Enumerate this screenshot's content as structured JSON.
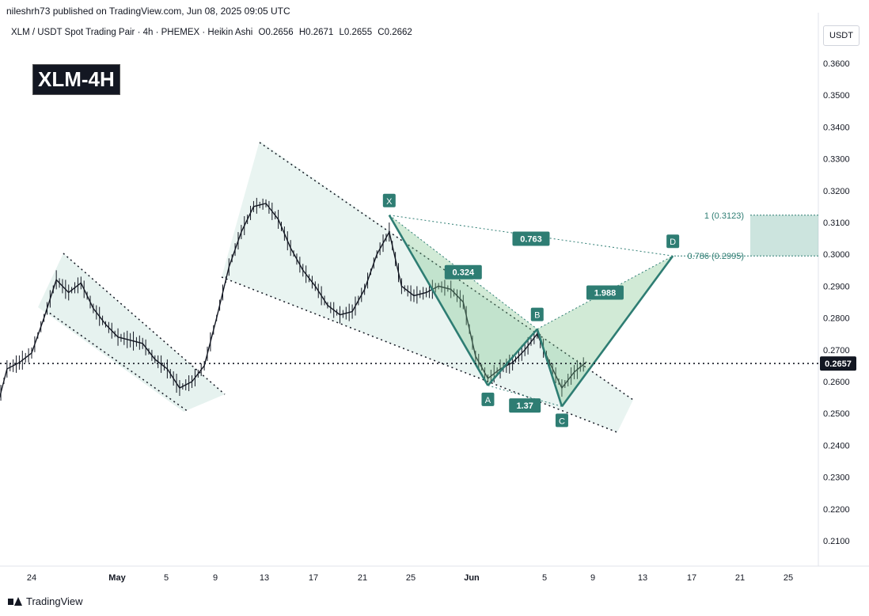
{
  "publisher": "nileshrh73 published on TradingView.com, Jun 08, 2025 09:05 UTC",
  "symbol_info": {
    "pair": "XLM / USDT Spot Trading Pair · 4h · PHEMEX · Heikin Ashi",
    "open": "O0.2656",
    "high": "H0.2671",
    "low": "L0.2655",
    "close": "C0.2662"
  },
  "badge": "XLM-4H",
  "currency": "USDT",
  "footer_brand": "TradingView",
  "colors": {
    "pattern": "#2e7d73",
    "pattern_fill": "#7cc48a",
    "channel_fill": "#c8e3dc",
    "target_fill": "#8ec3b6",
    "price_tag": "#131722"
  },
  "chart_data": {
    "type": "line",
    "title": "XLM-4H",
    "ylabel": "USDT",
    "ylim": [
      0.2045,
      0.3675
    ],
    "y_ticks": [
      "0.3600",
      "0.3500",
      "0.3400",
      "0.3300",
      "0.3200",
      "0.3100",
      "0.3000",
      "0.2900",
      "0.2800",
      "0.2700",
      "0.2600",
      "0.2500",
      "0.2400",
      "0.2300",
      "0.2200",
      "0.2100"
    ],
    "x_ticks": [
      "24",
      "May",
      "5",
      "9",
      "13",
      "17",
      "21",
      "25",
      "Jun",
      "5",
      "9",
      "13",
      "17",
      "21",
      "25"
    ],
    "current_price": "0.2657",
    "price_path": [
      [
        "Apr 21",
        0.249
      ],
      [
        "Apr 22",
        0.264
      ],
      [
        "Apr 23",
        0.266
      ],
      [
        "Apr 24",
        0.269
      ],
      [
        "Apr 25",
        0.28
      ],
      [
        "Apr 26",
        0.292
      ],
      [
        "Apr 27",
        0.288
      ],
      [
        "Apr 28",
        0.291
      ],
      [
        "Apr 29",
        0.283
      ],
      [
        "Apr 30",
        0.278
      ],
      [
        "May 1",
        0.274
      ],
      [
        "May 2",
        0.273
      ],
      [
        "May 3",
        0.272
      ],
      [
        "May 4",
        0.267
      ],
      [
        "May 5",
        0.264
      ],
      [
        "May 6",
        0.258
      ],
      [
        "May 7",
        0.26
      ],
      [
        "May 8",
        0.265
      ],
      [
        "May 9",
        0.28
      ],
      [
        "May 10",
        0.296
      ],
      [
        "May 11",
        0.307
      ],
      [
        "May 12",
        0.315
      ],
      [
        "May 13",
        0.316
      ],
      [
        "May 14",
        0.311
      ],
      [
        "May 15",
        0.302
      ],
      [
        "May 16",
        0.295
      ],
      [
        "May 17",
        0.29
      ],
      [
        "May 18",
        0.284
      ],
      [
        "May 19",
        0.281
      ],
      [
        "May 20",
        0.282
      ],
      [
        "May 21",
        0.289
      ],
      [
        "May 22",
        0.3
      ],
      [
        "May 23",
        0.307
      ],
      [
        "May 24",
        0.29
      ],
      [
        "May 25",
        0.287
      ],
      [
        "May 26",
        0.288
      ],
      [
        "May 27",
        0.29
      ],
      [
        "May 28",
        0.289
      ],
      [
        "May 29",
        0.285
      ],
      [
        "May 30",
        0.268
      ],
      [
        "May 31",
        0.261
      ],
      [
        "Jun 1",
        0.264
      ],
      [
        "Jun 2",
        0.266
      ],
      [
        "Jun 3",
        0.27
      ],
      [
        "Jun 4",
        0.275
      ],
      [
        "Jun 5",
        0.266
      ],
      [
        "Jun 6",
        0.258
      ],
      [
        "Jun 7",
        0.263
      ],
      [
        "Jun 8",
        0.2662
      ]
    ],
    "harmonic_points": [
      {
        "label": "X",
        "date": "May 23",
        "price": 0.3123
      },
      {
        "label": "A",
        "date": "May 31",
        "price": 0.2588
      },
      {
        "label": "B",
        "date": "Jun 4",
        "price": 0.2765
      },
      {
        "label": "C",
        "date": "Jun 6",
        "price": 0.2522
      },
      {
        "label": "D",
        "date": "Jun 15",
        "price": 0.2995
      }
    ],
    "ratios": [
      {
        "label": "0.324",
        "segment": "XB"
      },
      {
        "label": "1.37",
        "segment": "AC"
      },
      {
        "label": "1.988",
        "segment": "BD"
      },
      {
        "label": "0.763",
        "segment": "XD"
      }
    ],
    "fib_levels": [
      {
        "label": "1 (0.3123)",
        "price": 0.3123
      },
      {
        "label": "0.786 (0.2995)",
        "price": 0.2995
      }
    ]
  }
}
